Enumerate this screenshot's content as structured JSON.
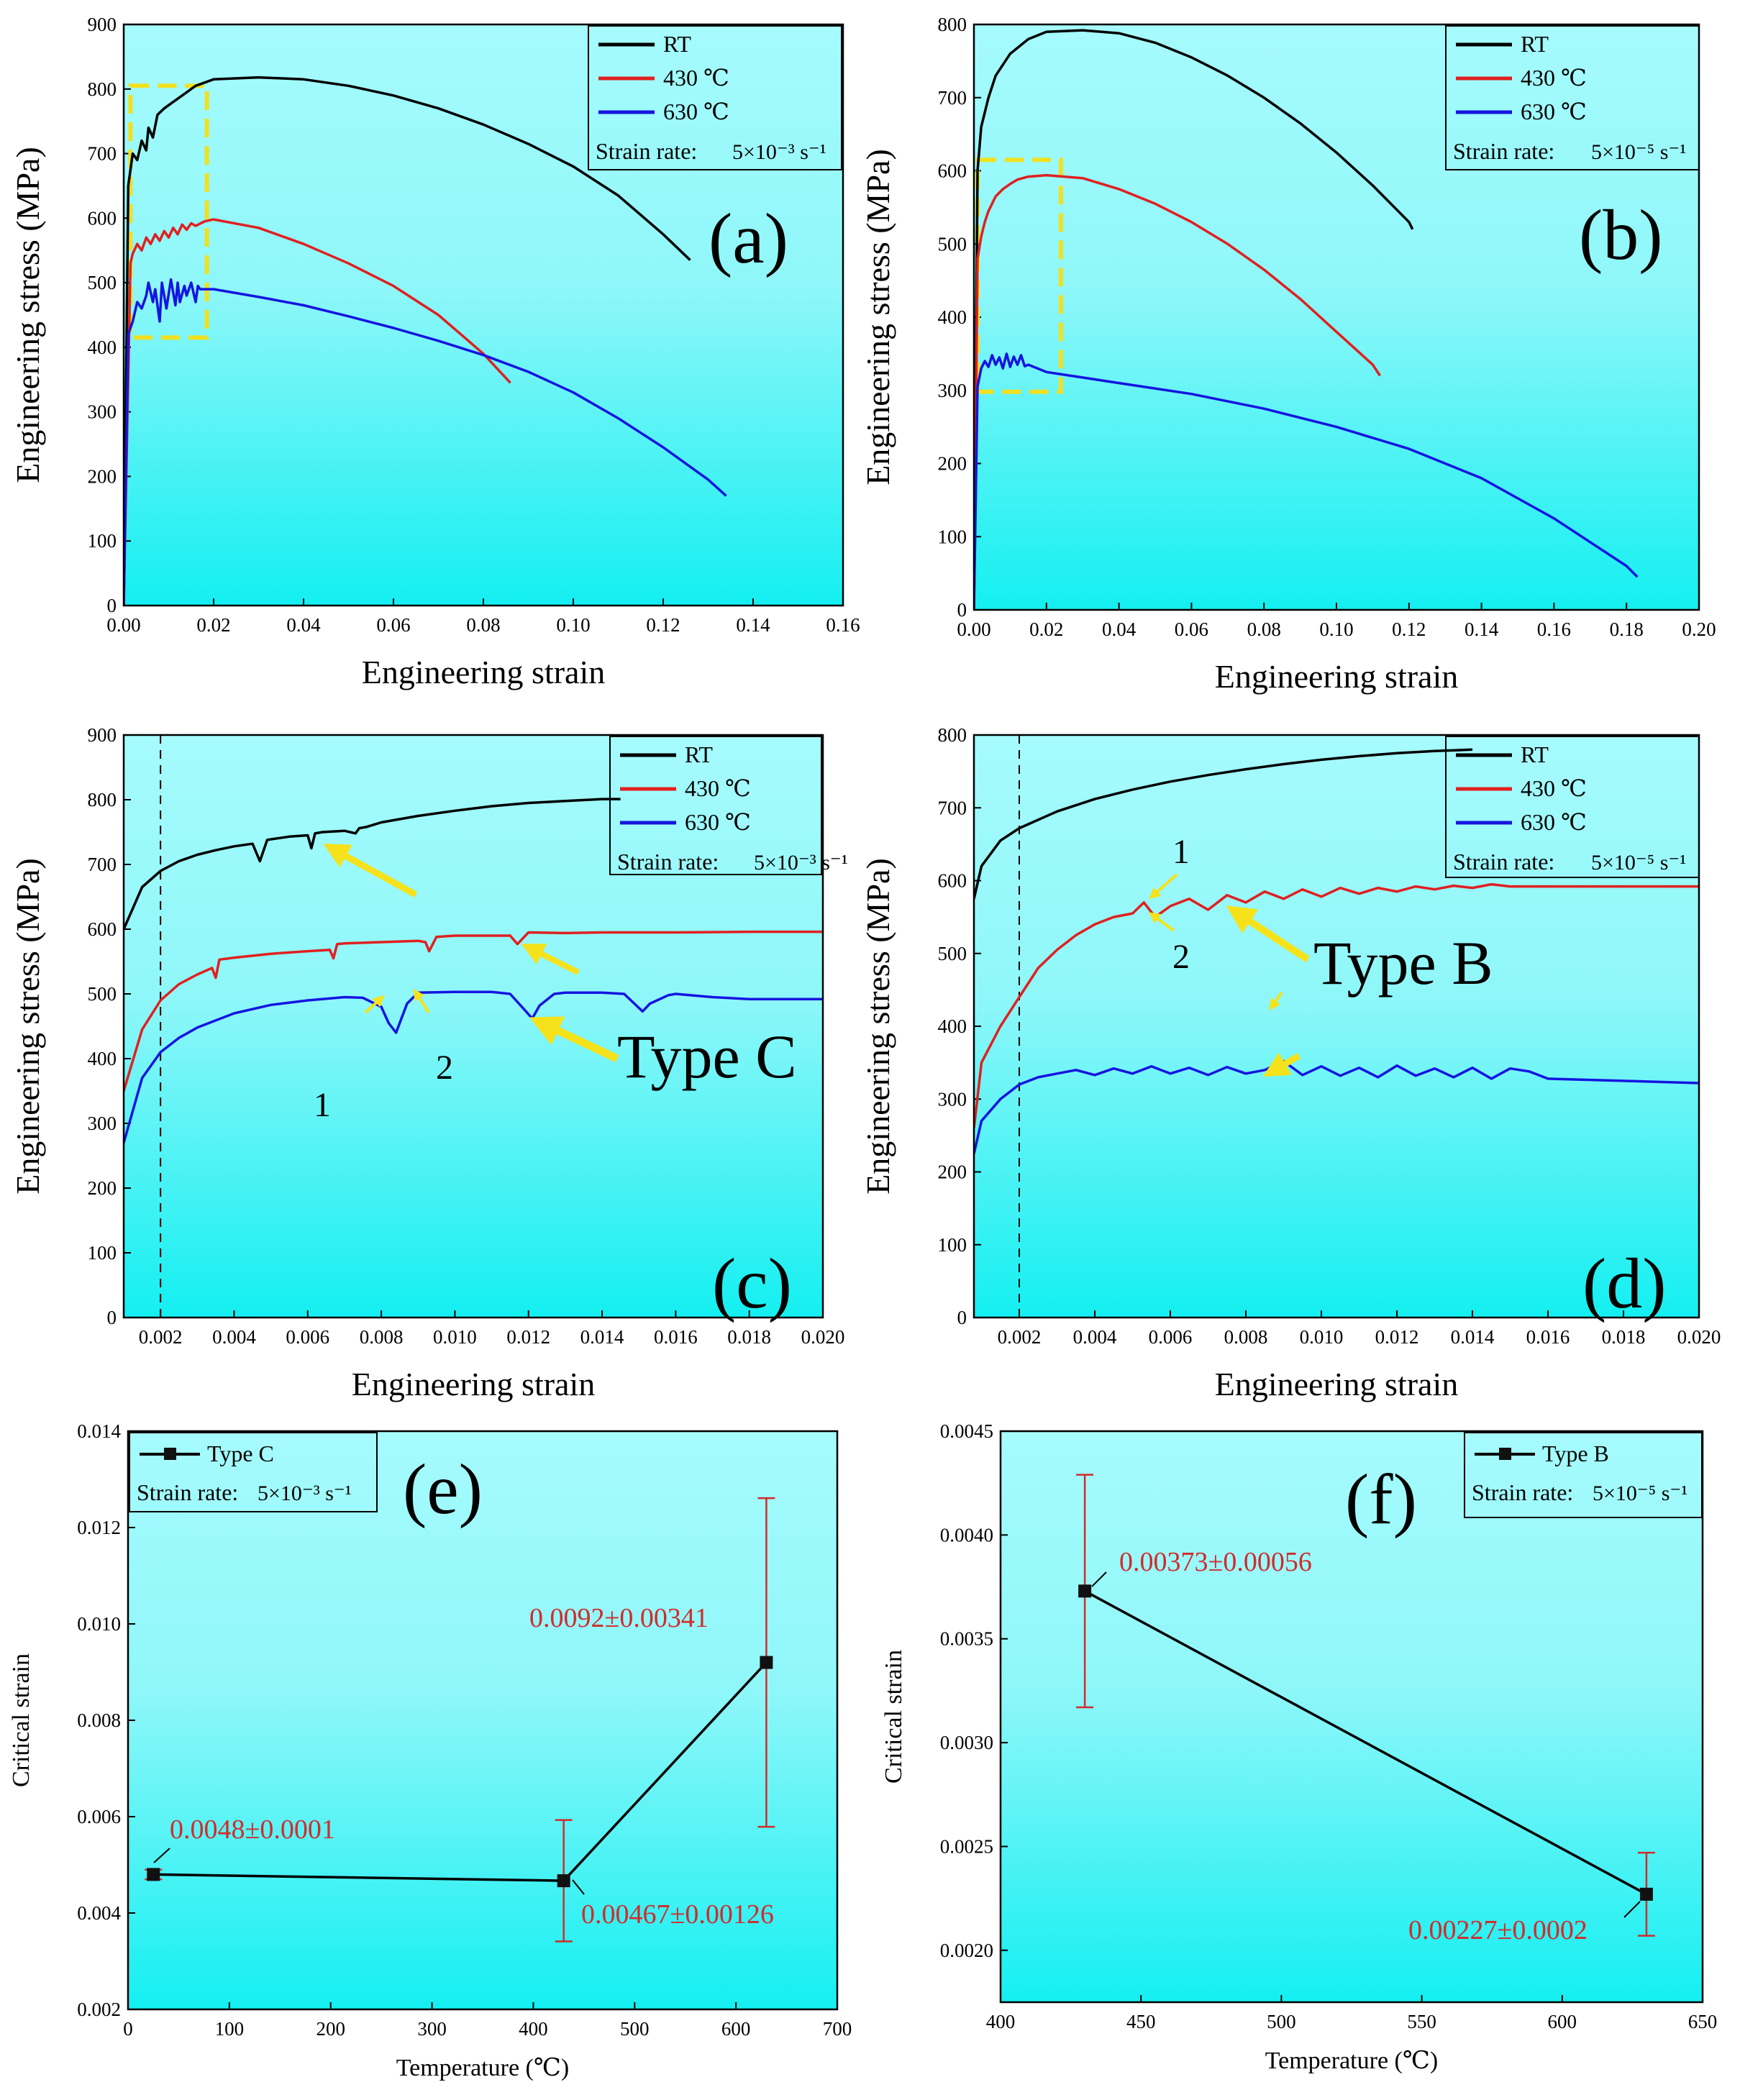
{
  "colors": {
    "background": "#9ff9fb",
    "background_bottom": "#18eef0",
    "rt": "#000000",
    "t430": "#e02020",
    "t630": "#1515e0",
    "box": "#f0e020",
    "arrow": "#f5e21a",
    "label": "#d22b2b"
  },
  "chart_data": [
    {
      "id": "a",
      "type": "line",
      "panel_label": "(a)",
      "xlabel": "Engineering strain",
      "ylabel": "Engineering stress (MPa)",
      "xlim": [
        0,
        0.16
      ],
      "ylim": [
        0,
        900
      ],
      "xticks": [
        "0.00",
        "0.02",
        "0.04",
        "0.06",
        "0.08",
        "0.10",
        "0.12",
        "0.14",
        "0.16"
      ],
      "yticks": [
        "0",
        "100",
        "200",
        "300",
        "400",
        "500",
        "600",
        "700",
        "800",
        "900"
      ],
      "legend": [
        "RT",
        "430 ℃",
        "630 ℃"
      ],
      "strain_rate_label": "Strain rate:",
      "strain_rate_value": "5×10⁻³ s⁻¹",
      "highlight_box": {
        "x": [
          0.0015,
          0.0185
        ],
        "y": [
          415,
          805
        ]
      },
      "series": [
        {
          "name": "RT",
          "color_key": "rt",
          "x": [
            0,
            0.001,
            0.002,
            0.003,
            0.004,
            0.005,
            0.0055,
            0.0065,
            0.0075,
            0.009,
            0.011,
            0.013,
            0.016,
            0.02,
            0.03,
            0.04,
            0.05,
            0.06,
            0.07,
            0.08,
            0.09,
            0.1,
            0.11,
            0.12,
            0.126
          ],
          "y": [
            0,
            650,
            700,
            690,
            720,
            705,
            740,
            725,
            760,
            770,
            780,
            790,
            805,
            815,
            818,
            815,
            805,
            790,
            770,
            745,
            715,
            680,
            635,
            575,
            535
          ]
        },
        {
          "name": "430 ℃",
          "color_key": "t430",
          "x": [
            0,
            0.0015,
            0.002,
            0.003,
            0.004,
            0.005,
            0.006,
            0.007,
            0.008,
            0.009,
            0.01,
            0.011,
            0.012,
            0.013,
            0.014,
            0.015,
            0.016,
            0.018,
            0.02,
            0.03,
            0.04,
            0.05,
            0.06,
            0.07,
            0.08,
            0.086
          ],
          "y": [
            0,
            530,
            545,
            560,
            550,
            570,
            560,
            575,
            565,
            580,
            570,
            585,
            575,
            590,
            582,
            592,
            588,
            595,
            598,
            585,
            560,
            530,
            495,
            450,
            390,
            345
          ]
        },
        {
          "name": "630 ℃",
          "color_key": "t630",
          "x": [
            0,
            0.001,
            0.002,
            0.003,
            0.004,
            0.005,
            0.0055,
            0.0065,
            0.007,
            0.008,
            0.0085,
            0.0095,
            0.0105,
            0.0115,
            0.012,
            0.0125,
            0.0135,
            0.014,
            0.015,
            0.016,
            0.0165,
            0.017,
            0.02,
            0.03,
            0.04,
            0.05,
            0.06,
            0.07,
            0.08,
            0.09,
            0.1,
            0.11,
            0.12,
            0.13,
            0.134
          ],
          "y": [
            0,
            420,
            440,
            470,
            460,
            480,
            500,
            470,
            490,
            440,
            500,
            460,
            505,
            465,
            500,
            470,
            495,
            480,
            500,
            470,
            495,
            490,
            490,
            478,
            465,
            448,
            430,
            410,
            388,
            362,
            330,
            290,
            245,
            195,
            170
          ]
        }
      ]
    },
    {
      "id": "b",
      "type": "line",
      "panel_label": "(b)",
      "xlabel": "Engineering strain",
      "ylabel": "Engineering stress (MPa)",
      "xlim": [
        0,
        0.2
      ],
      "ylim": [
        0,
        800
      ],
      "xticks": [
        "0.00",
        "0.02",
        "0.04",
        "0.06",
        "0.08",
        "0.10",
        "0.12",
        "0.14",
        "0.16",
        "0.18",
        "0.20"
      ],
      "yticks": [
        "0",
        "100",
        "200",
        "300",
        "400",
        "500",
        "600",
        "700",
        "800"
      ],
      "legend": [
        "RT",
        "430 ℃",
        "630 ℃"
      ],
      "strain_rate_label": "Strain rate:",
      "strain_rate_value": "5×10⁻⁵ s⁻¹",
      "highlight_box": {
        "x": [
          0.001,
          0.024
        ],
        "y": [
          298,
          615
        ]
      },
      "series": [
        {
          "name": "RT",
          "color_key": "rt",
          "x": [
            0,
            0.001,
            0.002,
            0.004,
            0.006,
            0.01,
            0.015,
            0.02,
            0.03,
            0.04,
            0.05,
            0.06,
            0.07,
            0.08,
            0.09,
            0.1,
            0.11,
            0.12,
            0.121
          ],
          "y": [
            0,
            600,
            660,
            700,
            730,
            760,
            780,
            790,
            792,
            788,
            775,
            755,
            730,
            700,
            665,
            625,
            580,
            530,
            520
          ]
        },
        {
          "name": "430 ℃",
          "color_key": "t430",
          "x": [
            0,
            0.001,
            0.002,
            0.003,
            0.004,
            0.006,
            0.008,
            0.01,
            0.012,
            0.015,
            0.02,
            0.03,
            0.04,
            0.05,
            0.06,
            0.07,
            0.08,
            0.09,
            0.1,
            0.11,
            0.112
          ],
          "y": [
            0,
            480,
            510,
            530,
            545,
            565,
            575,
            582,
            588,
            592,
            594,
            590,
            575,
            555,
            530,
            500,
            465,
            425,
            380,
            335,
            320
          ]
        },
        {
          "name": "630 ℃",
          "color_key": "t630",
          "x": [
            0,
            0.001,
            0.002,
            0.003,
            0.004,
            0.005,
            0.006,
            0.007,
            0.008,
            0.009,
            0.01,
            0.011,
            0.012,
            0.013,
            0.014,
            0.015,
            0.02,
            0.04,
            0.06,
            0.08,
            0.1,
            0.12,
            0.14,
            0.16,
            0.18,
            0.183
          ],
          "y": [
            0,
            305,
            330,
            340,
            332,
            348,
            335,
            345,
            330,
            350,
            332,
            346,
            335,
            348,
            333,
            335,
            325,
            310,
            295,
            275,
            250,
            220,
            180,
            125,
            60,
            45
          ]
        }
      ]
    },
    {
      "id": "c",
      "type": "line",
      "panel_label": "(c)",
      "xlabel": "Engineering strain",
      "ylabel": "Engineering stress (MPa)",
      "xlim": [
        0.001,
        0.02
      ],
      "ylim": [
        0,
        900
      ],
      "xticks": [
        "0.002",
        "0.004",
        "0.006",
        "0.008",
        "0.010",
        "0.012",
        "0.014",
        "0.016",
        "0.018",
        "0.020"
      ],
      "yticks": [
        "0",
        "100",
        "200",
        "300",
        "400",
        "500",
        "600",
        "700",
        "800",
        "900"
      ],
      "legend": [
        "RT",
        "430 ℃",
        "630 ℃"
      ],
      "strain_rate_label": "Strain rate:",
      "strain_rate_value": "5×10⁻³ s⁻¹",
      "dashed_x": 0.002,
      "series": [
        {
          "name": "RT",
          "color_key": "rt",
          "x": [
            0.001,
            0.0015,
            0.002,
            0.0025,
            0.003,
            0.0035,
            0.004,
            0.0045,
            0.0047,
            0.0049,
            0.0055,
            0.006,
            0.0061,
            0.0062,
            0.0064,
            0.007,
            0.0073,
            0.0074,
            0.0076,
            0.008,
            0.009,
            0.01,
            0.011,
            0.012,
            0.013,
            0.014,
            0.0145
          ],
          "y": [
            600,
            665,
            690,
            705,
            715,
            722,
            728,
            732,
            705,
            738,
            743,
            745,
            725,
            748,
            750,
            752,
            748,
            756,
            758,
            765,
            775,
            783,
            790,
            795,
            798,
            801,
            801
          ]
        },
        {
          "name": "430 ℃",
          "color_key": "t430",
          "x": [
            0.001,
            0.0015,
            0.002,
            0.0025,
            0.003,
            0.0034,
            0.0035,
            0.0036,
            0.004,
            0.005,
            0.006,
            0.0066,
            0.0067,
            0.0068,
            0.007,
            0.008,
            0.009,
            0.0092,
            0.0093,
            0.0095,
            0.01,
            0.011,
            0.0115,
            0.0117,
            0.012,
            0.013,
            0.014,
            0.016,
            0.018,
            0.02
          ],
          "y": [
            350,
            445,
            490,
            515,
            530,
            540,
            525,
            553,
            556,
            562,
            566,
            568,
            555,
            577,
            578,
            580,
            582,
            580,
            566,
            588,
            590,
            590,
            590,
            577,
            595,
            594,
            595,
            595,
            596,
            596
          ]
        },
        {
          "name": "630 ℃",
          "color_key": "t630",
          "x": [
            0.001,
            0.0015,
            0.002,
            0.0025,
            0.003,
            0.004,
            0.005,
            0.006,
            0.007,
            0.0075,
            0.008,
            0.0082,
            0.0084,
            0.0087,
            0.009,
            0.01,
            0.011,
            0.0115,
            0.0119,
            0.0121,
            0.0123,
            0.0127,
            0.013,
            0.014,
            0.0146,
            0.0151,
            0.0153,
            0.0158,
            0.016,
            0.017,
            0.018,
            0.02
          ],
          "y": [
            270,
            370,
            410,
            432,
            448,
            470,
            483,
            490,
            495,
            494,
            480,
            455,
            440,
            485,
            502,
            503,
            503,
            500,
            475,
            462,
            482,
            500,
            502,
            502,
            500,
            473,
            485,
            498,
            500,
            495,
            492,
            492
          ]
        }
      ]
    },
    {
      "id": "d",
      "type": "line",
      "panel_label": "(d)",
      "xlabel": "Engineering strain",
      "ylabel": "Engineering stress (MPa)",
      "xlim": [
        0.0008,
        0.02
      ],
      "ylim": [
        0,
        800
      ],
      "xticks": [
        "0.002",
        "0.004",
        "0.006",
        "0.008",
        "0.010",
        "0.012",
        "0.014",
        "0.016",
        "0.018",
        "0.020"
      ],
      "yticks": [
        "0",
        "100",
        "200",
        "300",
        "400",
        "500",
        "600",
        "700",
        "800"
      ],
      "legend": [
        "RT",
        "430 ℃",
        "630 ℃"
      ],
      "strain_rate_label": "Strain rate:",
      "strain_rate_value": "5×10⁻⁵ s⁻¹",
      "dashed_x": 0.002,
      "series": [
        {
          "name": "RT",
          "color_key": "rt",
          "x": [
            0.0008,
            0.001,
            0.0015,
            0.002,
            0.003,
            0.004,
            0.005,
            0.006,
            0.007,
            0.008,
            0.009,
            0.01,
            0.011,
            0.012,
            0.013,
            0.014
          ],
          "y": [
            575,
            620,
            655,
            672,
            695,
            712,
            725,
            736,
            745,
            753,
            760,
            766,
            771,
            775,
            778,
            780
          ]
        },
        {
          "name": "430 ℃",
          "color_key": "t430",
          "x": [
            0.0008,
            0.001,
            0.0015,
            0.002,
            0.0025,
            0.003,
            0.0035,
            0.004,
            0.0045,
            0.005,
            0.0053,
            0.0056,
            0.006,
            0.0065,
            0.007,
            0.0075,
            0.008,
            0.0085,
            0.009,
            0.0095,
            0.01,
            0.0105,
            0.011,
            0.0115,
            0.012,
            0.0125,
            0.013,
            0.0135,
            0.014,
            0.0145,
            0.015,
            0.0155,
            0.016,
            0.018,
            0.02
          ],
          "y": [
            260,
            350,
            400,
            440,
            480,
            505,
            525,
            540,
            550,
            555,
            570,
            550,
            565,
            575,
            560,
            580,
            570,
            585,
            575,
            588,
            578,
            590,
            582,
            590,
            585,
            592,
            588,
            593,
            590,
            595,
            592,
            592,
            592,
            592,
            592
          ]
        },
        {
          "name": "630 ℃",
          "color_key": "t630",
          "x": [
            0.0008,
            0.001,
            0.0015,
            0.002,
            0.0025,
            0.003,
            0.0035,
            0.004,
            0.0045,
            0.005,
            0.0055,
            0.006,
            0.0065,
            0.007,
            0.0075,
            0.008,
            0.0085,
            0.009,
            0.0095,
            0.01,
            0.0105,
            0.011,
            0.0115,
            0.012,
            0.0125,
            0.013,
            0.0135,
            0.014,
            0.0145,
            0.015,
            0.0155,
            0.016,
            0.018,
            0.02
          ],
          "y": [
            225,
            270,
            300,
            320,
            330,
            335,
            340,
            333,
            342,
            335,
            345,
            335,
            343,
            333,
            344,
            335,
            340,
            352,
            333,
            345,
            332,
            343,
            330,
            346,
            332,
            342,
            330,
            343,
            328,
            342,
            338,
            328,
            325,
            322
          ]
        }
      ]
    },
    {
      "id": "e",
      "type": "line",
      "panel_label": "(e)",
      "xlabel": "Temperature (℃)",
      "ylabel": "Critical strain",
      "xlim": [
        0,
        700
      ],
      "ylim": [
        0.002,
        0.014
      ],
      "xticks": [
        "0",
        "100",
        "200",
        "300",
        "400",
        "500",
        "600",
        "700"
      ],
      "yticks": [
        "0.002",
        "0.004",
        "0.006",
        "0.008",
        "0.010",
        "0.012",
        "0.014"
      ],
      "legend": [
        "Type C"
      ],
      "strain_rate_label": "Strain rate:",
      "strain_rate_value": "5×10⁻³ s⁻¹",
      "series": [
        {
          "name": "Type C",
          "x": [
            25,
            430,
            630
          ],
          "y": [
            0.0048,
            0.00467,
            0.0092
          ],
          "err": [
            0.0001,
            0.00126,
            0.00341
          ]
        }
      ],
      "point_labels": [
        "0.0048±0.0001",
        "0.00467±0.00126",
        "0.0092±0.00341"
      ]
    },
    {
      "id": "f",
      "type": "line",
      "panel_label": "(f)",
      "xlabel": "Temperature (℃)",
      "ylabel": "Critical strain",
      "xlim": [
        400,
        650
      ],
      "ylim": [
        0.00175,
        0.0045
      ],
      "xticks": [
        "400",
        "450",
        "500",
        "550",
        "600",
        "650"
      ],
      "yticks": [
        "0.0020",
        "0.0025",
        "0.0030",
        "0.0035",
        "0.0040",
        "0.0045"
      ],
      "legend": [
        "Type B"
      ],
      "strain_rate_label": "Strain rate:",
      "strain_rate_value": "5×10⁻⁵ s⁻¹",
      "series": [
        {
          "name": "Type B",
          "x": [
            430,
            630
          ],
          "y": [
            0.00373,
            0.00227
          ],
          "err": [
            0.00056,
            0.0002
          ]
        }
      ],
      "point_labels": [
        "0.00373±0.00056",
        "0.00227±0.0002"
      ]
    }
  ],
  "annotations": {
    "c": {
      "type_label": "Type C",
      "num1": "1",
      "num2": "2"
    },
    "d": {
      "type_label": "Type B",
      "num1": "1",
      "num2": "2"
    }
  }
}
